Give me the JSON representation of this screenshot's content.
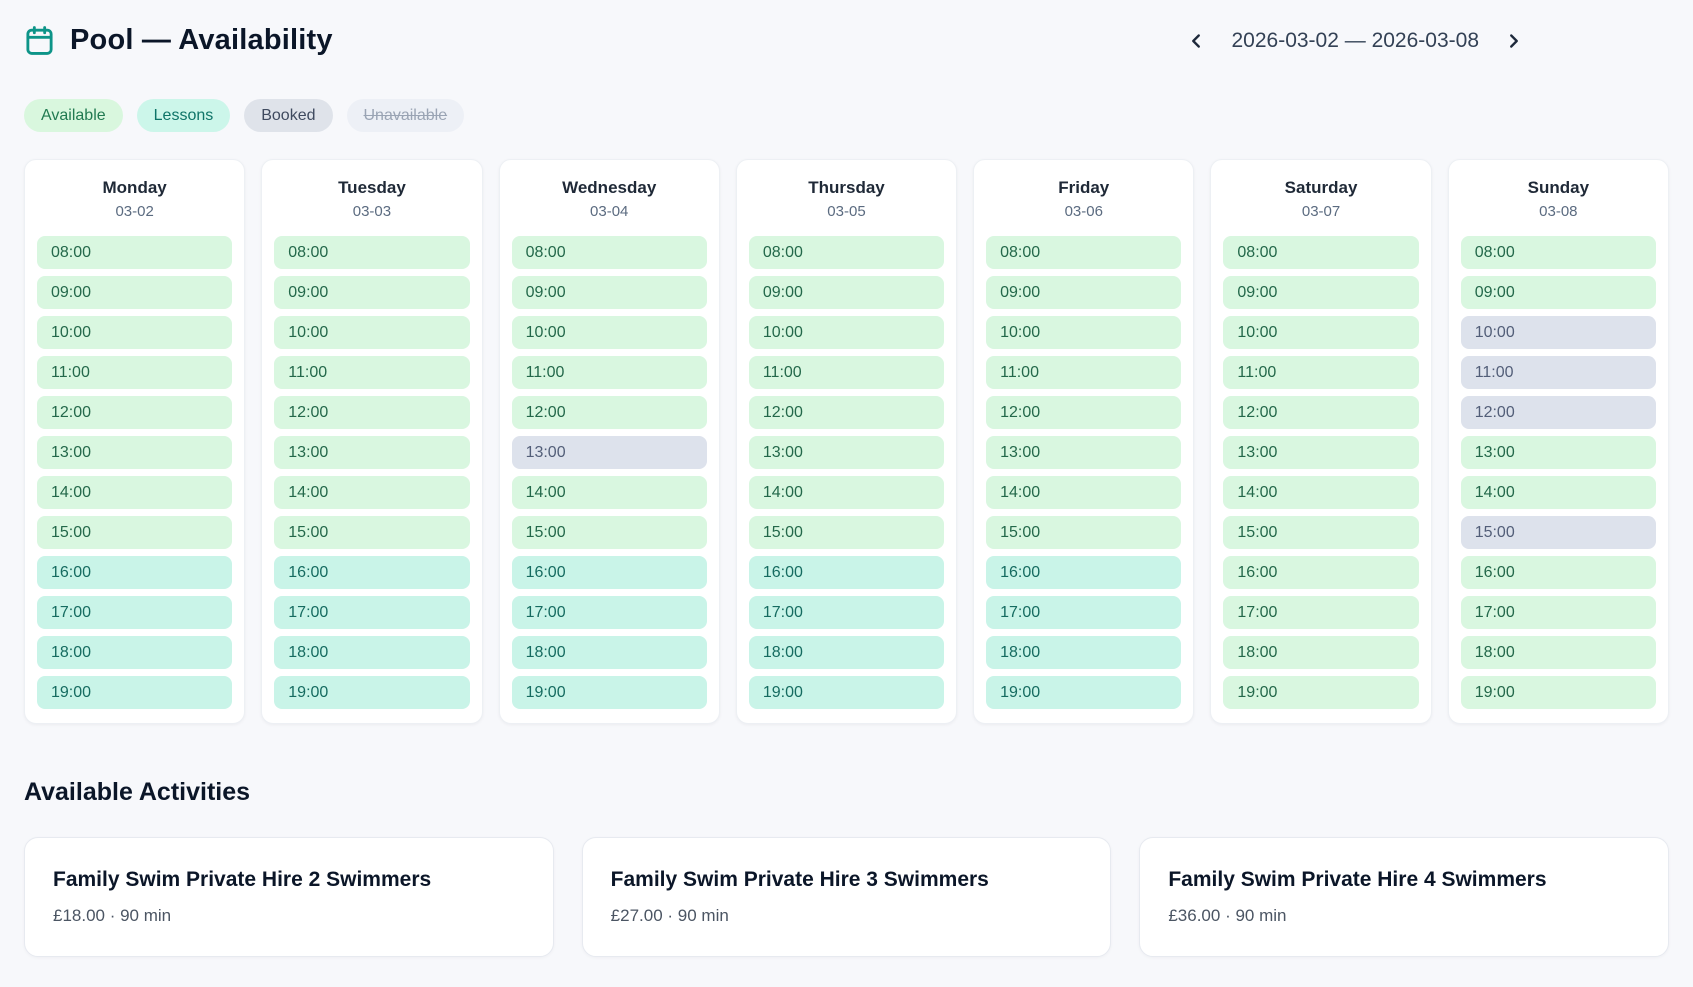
{
  "header": {
    "title": "Pool — Availability",
    "icon": "calendar-icon",
    "nav": {
      "range": "2026-03-02 — 2026-03-08",
      "prev_icon": "chevron-left",
      "next_icon": "chevron-right"
    }
  },
  "legend": [
    {
      "type": "available",
      "label": "Available"
    },
    {
      "type": "lessons",
      "label": "Lessons"
    },
    {
      "type": "booked",
      "label": "Booked"
    },
    {
      "type": "unavailable",
      "label": "Unavailable"
    }
  ],
  "colors": {
    "accent": "#0d9488",
    "available_bg": "#d9f7e0",
    "available_text": "#23684a",
    "lessons_bg": "#c9f4e8",
    "lessons_text": "#156b60",
    "booked_bg": "#dde2ec",
    "booked_text": "#525e78",
    "unavailable_bg": "#edf0f6",
    "unavailable_text": "#9aa4b4",
    "page_bg": "#f7f8fb"
  },
  "calendar": {
    "days": [
      {
        "name": "Monday",
        "date": "03-02",
        "slots": [
          {
            "time": "08:00",
            "status": "available"
          },
          {
            "time": "09:00",
            "status": "available"
          },
          {
            "time": "10:00",
            "status": "available"
          },
          {
            "time": "11:00",
            "status": "available"
          },
          {
            "time": "12:00",
            "status": "available"
          },
          {
            "time": "13:00",
            "status": "available"
          },
          {
            "time": "14:00",
            "status": "available"
          },
          {
            "time": "15:00",
            "status": "available"
          },
          {
            "time": "16:00",
            "status": "lessons"
          },
          {
            "time": "17:00",
            "status": "lessons"
          },
          {
            "time": "18:00",
            "status": "lessons"
          },
          {
            "time": "19:00",
            "status": "lessons"
          }
        ]
      },
      {
        "name": "Tuesday",
        "date": "03-03",
        "slots": [
          {
            "time": "08:00",
            "status": "available"
          },
          {
            "time": "09:00",
            "status": "available"
          },
          {
            "time": "10:00",
            "status": "available"
          },
          {
            "time": "11:00",
            "status": "available"
          },
          {
            "time": "12:00",
            "status": "available"
          },
          {
            "time": "13:00",
            "status": "available"
          },
          {
            "time": "14:00",
            "status": "available"
          },
          {
            "time": "15:00",
            "status": "available"
          },
          {
            "time": "16:00",
            "status": "lessons"
          },
          {
            "time": "17:00",
            "status": "lessons"
          },
          {
            "time": "18:00",
            "status": "lessons"
          },
          {
            "time": "19:00",
            "status": "lessons"
          }
        ]
      },
      {
        "name": "Wednesday",
        "date": "03-04",
        "slots": [
          {
            "time": "08:00",
            "status": "available"
          },
          {
            "time": "09:00",
            "status": "available"
          },
          {
            "time": "10:00",
            "status": "available"
          },
          {
            "time": "11:00",
            "status": "available"
          },
          {
            "time": "12:00",
            "status": "available"
          },
          {
            "time": "13:00",
            "status": "booked"
          },
          {
            "time": "14:00",
            "status": "available"
          },
          {
            "time": "15:00",
            "status": "available"
          },
          {
            "time": "16:00",
            "status": "lessons"
          },
          {
            "time": "17:00",
            "status": "lessons"
          },
          {
            "time": "18:00",
            "status": "lessons"
          },
          {
            "time": "19:00",
            "status": "lessons"
          }
        ]
      },
      {
        "name": "Thursday",
        "date": "03-05",
        "slots": [
          {
            "time": "08:00",
            "status": "available"
          },
          {
            "time": "09:00",
            "status": "available"
          },
          {
            "time": "10:00",
            "status": "available"
          },
          {
            "time": "11:00",
            "status": "available"
          },
          {
            "time": "12:00",
            "status": "available"
          },
          {
            "time": "13:00",
            "status": "available"
          },
          {
            "time": "14:00",
            "status": "available"
          },
          {
            "time": "15:00",
            "status": "available"
          },
          {
            "time": "16:00",
            "status": "lessons"
          },
          {
            "time": "17:00",
            "status": "lessons"
          },
          {
            "time": "18:00",
            "status": "lessons"
          },
          {
            "time": "19:00",
            "status": "lessons"
          }
        ]
      },
      {
        "name": "Friday",
        "date": "03-06",
        "slots": [
          {
            "time": "08:00",
            "status": "available"
          },
          {
            "time": "09:00",
            "status": "available"
          },
          {
            "time": "10:00",
            "status": "available"
          },
          {
            "time": "11:00",
            "status": "available"
          },
          {
            "time": "12:00",
            "status": "available"
          },
          {
            "time": "13:00",
            "status": "available"
          },
          {
            "time": "14:00",
            "status": "available"
          },
          {
            "time": "15:00",
            "status": "available"
          },
          {
            "time": "16:00",
            "status": "lessons"
          },
          {
            "time": "17:00",
            "status": "lessons"
          },
          {
            "time": "18:00",
            "status": "lessons"
          },
          {
            "time": "19:00",
            "status": "lessons"
          }
        ]
      },
      {
        "name": "Saturday",
        "date": "03-07",
        "slots": [
          {
            "time": "08:00",
            "status": "available"
          },
          {
            "time": "09:00",
            "status": "available"
          },
          {
            "time": "10:00",
            "status": "available"
          },
          {
            "time": "11:00",
            "status": "available"
          },
          {
            "time": "12:00",
            "status": "available"
          },
          {
            "time": "13:00",
            "status": "available"
          },
          {
            "time": "14:00",
            "status": "available"
          },
          {
            "time": "15:00",
            "status": "available"
          },
          {
            "time": "16:00",
            "status": "available"
          },
          {
            "time": "17:00",
            "status": "available"
          },
          {
            "time": "18:00",
            "status": "available"
          },
          {
            "time": "19:00",
            "status": "available"
          }
        ]
      },
      {
        "name": "Sunday",
        "date": "03-08",
        "slots": [
          {
            "time": "08:00",
            "status": "available"
          },
          {
            "time": "09:00",
            "status": "available"
          },
          {
            "time": "10:00",
            "status": "booked"
          },
          {
            "time": "11:00",
            "status": "booked"
          },
          {
            "time": "12:00",
            "status": "booked"
          },
          {
            "time": "13:00",
            "status": "available"
          },
          {
            "time": "14:00",
            "status": "available"
          },
          {
            "time": "15:00",
            "status": "booked"
          },
          {
            "time": "16:00",
            "status": "available"
          },
          {
            "time": "17:00",
            "status": "available"
          },
          {
            "time": "18:00",
            "status": "available"
          },
          {
            "time": "19:00",
            "status": "available"
          }
        ]
      }
    ]
  },
  "activities": {
    "heading": "Available Activities",
    "items": [
      {
        "title": "Family Swim Private Hire 2 Swimmers",
        "details": "£18.00 · 90 min"
      },
      {
        "title": "Family Swim Private Hire 3 Swimmers",
        "details": "£27.00 · 90 min"
      },
      {
        "title": "Family Swim Private Hire 4 Swimmers",
        "details": "£36.00 · 90 min"
      }
    ]
  }
}
